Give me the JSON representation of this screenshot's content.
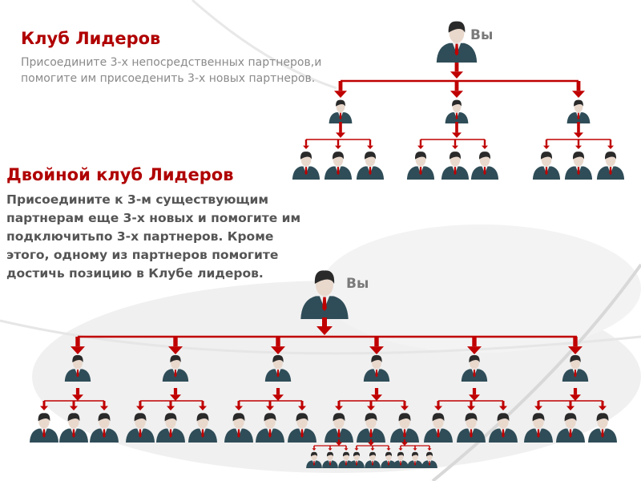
{
  "club": {
    "title": "Клуб Лидеров",
    "description": "Присоедините 3-х непосредственных партнеров,и помогите им присоеденить 3-х новых партнеров.",
    "you_label": "Вы"
  },
  "double_club": {
    "title": "Двойной клуб Лидеров",
    "description": "Присоедините к 3-м существующим партнерам еще 3-х новых и помогите им подключитьпо 3-х партнеров. Кроме этого, одному из партнеров помогите достичь позицию в Клубе лидеров.",
    "you_label": "Вы"
  },
  "colors": {
    "accent": "#b00000",
    "connector": "#c00000",
    "suit": "#2f4d58"
  },
  "icons": {
    "person": "businessman-icon",
    "arrow": "red-down-arrow-icon"
  }
}
